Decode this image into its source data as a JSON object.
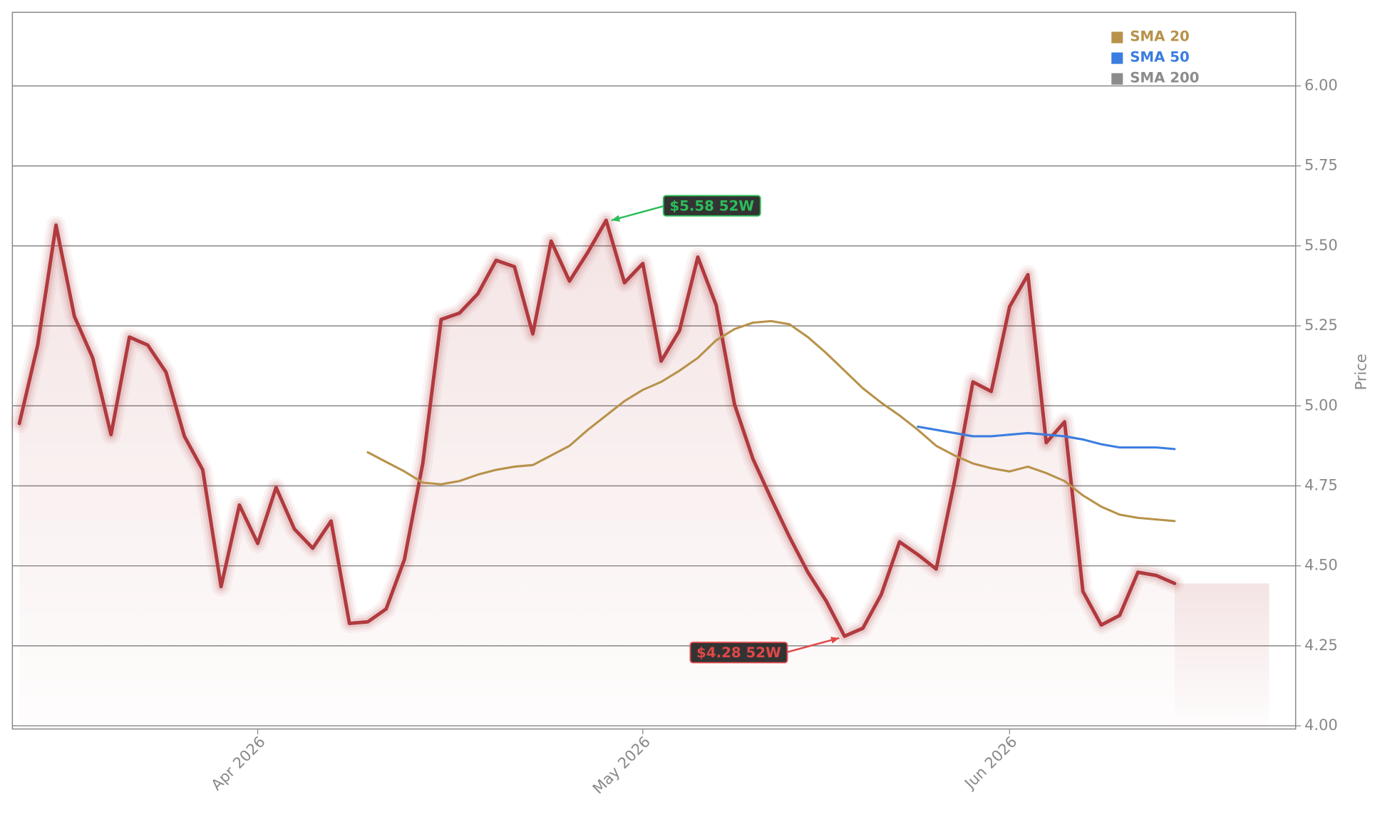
{
  "chart_data": {
    "type": "line",
    "y_label": "Price",
    "x": [
      0,
      1,
      2,
      3,
      4,
      5,
      6,
      7,
      8,
      9,
      10,
      11,
      12,
      13,
      14,
      15,
      16,
      17,
      18,
      19,
      20,
      21,
      22,
      23,
      24,
      25,
      26,
      27,
      28,
      29,
      30,
      31,
      32,
      33,
      34,
      35,
      36,
      37,
      38,
      39,
      40,
      41,
      42,
      43,
      44,
      45,
      46,
      47,
      48,
      49,
      50,
      51,
      52,
      53,
      54,
      55,
      56,
      57,
      58,
      59,
      60,
      61,
      62,
      63
    ],
    "xlim": [
      -0.38,
      69.6
    ],
    "xticks": [
      {
        "value": 13,
        "label": "Apr 2026"
      },
      {
        "value": 34,
        "label": "May 2026"
      },
      {
        "value": 54,
        "label": "Jun 2026"
      }
    ],
    "ylim": [
      3.99,
      6.23
    ],
    "yticks": [
      {
        "value": 4,
        "label": "4.00"
      },
      {
        "value": 4.25,
        "label": "4.25"
      },
      {
        "value": 4.5,
        "label": "4.50"
      },
      {
        "value": 4.75,
        "label": "4.75"
      },
      {
        "value": 5,
        "label": "5.00"
      },
      {
        "value": 5.25,
        "label": "5.25"
      },
      {
        "value": 5.5,
        "label": "5.50"
      },
      {
        "value": 5.75,
        "label": "5.75"
      },
      {
        "value": 6,
        "label": "6.00"
      }
    ],
    "grid": true,
    "legend": "upper right",
    "price": {
      "color": "#b03a3e",
      "values": [
        4.945,
        5.19,
        5.565,
        5.28,
        5.15,
        4.91,
        5.215,
        5.19,
        5.105,
        4.905,
        4.8,
        4.435,
        4.69,
        4.57,
        4.745,
        4.615,
        4.555,
        4.64,
        4.32,
        4.325,
        4.365,
        4.52,
        4.82,
        5.27,
        5.29,
        5.35,
        5.455,
        5.435,
        5.225,
        5.515,
        5.39,
        5.48,
        5.58,
        5.385,
        5.445,
        5.14,
        5.235,
        5.465,
        5.315,
        5.005,
        4.835,
        4.71,
        4.59,
        4.48,
        4.39,
        4.28,
        4.305,
        4.41,
        4.575,
        4.535,
        4.49,
        4.765,
        5.075,
        5.045,
        5.31,
        5.41,
        4.885,
        4.95,
        4.42,
        4.315,
        4.345,
        4.48,
        4.47,
        4.445
      ]
    },
    "series": [
      {
        "name": "SMA 20",
        "color": "#b8924a",
        "values": [
          null,
          null,
          null,
          null,
          null,
          null,
          null,
          null,
          null,
          null,
          null,
          null,
          null,
          null,
          null,
          null,
          null,
          null,
          null,
          4.855,
          4.825,
          4.795,
          4.76,
          4.755,
          4.765,
          4.785,
          4.8,
          4.81,
          4.815,
          4.845,
          4.875,
          4.925,
          4.97,
          5.015,
          5.05,
          5.075,
          5.11,
          5.15,
          5.205,
          5.24,
          5.26,
          5.265,
          5.255,
          5.215,
          5.165,
          5.11,
          5.055,
          5.01,
          4.97,
          4.925,
          4.875,
          4.845,
          4.82,
          4.805,
          4.795,
          4.81,
          4.79,
          4.765,
          4.72,
          4.685,
          4.66,
          4.65,
          4.645,
          4.64
        ]
      },
      {
        "name": "SMA 50",
        "color": "#3b7de0",
        "values": [
          null,
          null,
          null,
          null,
          null,
          null,
          null,
          null,
          null,
          null,
          null,
          null,
          null,
          null,
          null,
          null,
          null,
          null,
          null,
          null,
          null,
          null,
          null,
          null,
          null,
          null,
          null,
          null,
          null,
          null,
          null,
          null,
          null,
          null,
          null,
          null,
          null,
          null,
          null,
          null,
          null,
          null,
          null,
          null,
          null,
          null,
          null,
          null,
          null,
          4.935,
          4.925,
          4.915,
          4.905,
          4.905,
          4.91,
          4.915,
          4.91,
          4.905,
          4.895,
          4.88,
          4.87,
          4.87,
          4.87,
          4.865
        ]
      },
      {
        "name": "SMA 200",
        "color": "#8c8c8c",
        "values": [
          null,
          null,
          null,
          null,
          null,
          null,
          null,
          null,
          null,
          null,
          null,
          null,
          null,
          null,
          null,
          null,
          null,
          null,
          null,
          null,
          null,
          null,
          null,
          null,
          null,
          null,
          null,
          null,
          null,
          null,
          null,
          null,
          null,
          null,
          null,
          null,
          null,
          null,
          null,
          null,
          null,
          null,
          null,
          null,
          null,
          null,
          null,
          null,
          null,
          null,
          null,
          null,
          null,
          null,
          null,
          null,
          null,
          null,
          null,
          null,
          null,
          null,
          null,
          null
        ]
      }
    ],
    "annotations": [
      {
        "text": "$5.58 52W",
        "x": 32,
        "y": 5.58,
        "color": "#2dbd5a"
      },
      {
        "text": "$4.28 52W",
        "x": 45,
        "y": 4.28,
        "color": "#e04848"
      }
    ]
  }
}
